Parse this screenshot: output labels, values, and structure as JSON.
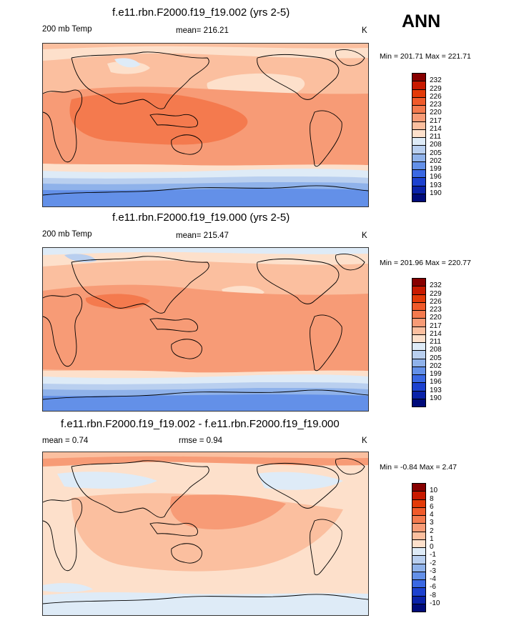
{
  "header": {
    "season": "ANN"
  },
  "panels": [
    {
      "title": "f.e11.rbn.F2000.f19_f19.002 (yrs 2-5)",
      "left_label": "200 mb Temp",
      "center_label": "mean= 216.21",
      "units": "K",
      "minmax": "Min = 201.71 Max = 221.71",
      "colorbar_labels": [
        "232",
        "229",
        "226",
        "223",
        "220",
        "217",
        "214",
        "211",
        "208",
        "205",
        "202",
        "199",
        "196",
        "193",
        "190"
      ],
      "colorbar_colors": [
        "#870000",
        "#c81a00",
        "#e33a08",
        "#f05a2a",
        "#f47a4e",
        "#f79b76",
        "#fbbf9f",
        "#fde0cb",
        "#deebf7",
        "#b9cfef",
        "#8fb2ea",
        "#6390e8",
        "#3a68e3",
        "#1c41cf",
        "#0a22a8",
        "#000b7a"
      ]
    },
    {
      "title": "f.e11.rbn.F2000.f19_f19.000 (yrs 2-5)",
      "left_label": "200 mb Temp",
      "center_label": "mean= 215.47",
      "units": "K",
      "minmax": "Min = 201.96 Max = 220.77",
      "colorbar_labels": [
        "232",
        "229",
        "226",
        "223",
        "220",
        "217",
        "214",
        "211",
        "208",
        "205",
        "202",
        "199",
        "196",
        "193",
        "190"
      ],
      "colorbar_colors": [
        "#870000",
        "#c81a00",
        "#e33a08",
        "#f05a2a",
        "#f47a4e",
        "#f79b76",
        "#fbbf9f",
        "#fde0cb",
        "#deebf7",
        "#b9cfef",
        "#8fb2ea",
        "#6390e8",
        "#3a68e3",
        "#1c41cf",
        "#0a22a8",
        "#000b7a"
      ]
    },
    {
      "title": "f.e11.rbn.F2000.f19_f19.002 - f.e11.rbn.F2000.f19_f19.000",
      "left_label": "mean =   0.74",
      "center_label": "rmse =   0.94",
      "units": "K",
      "minmax": "Min =  -0.84 Max =   2.47",
      "colorbar_labels": [
        "10",
        "8",
        "6",
        "4",
        "3",
        "2",
        "1",
        "0",
        "-1",
        "-2",
        "-3",
        "-4",
        "-6",
        "-8",
        "-10"
      ],
      "colorbar_colors": [
        "#870000",
        "#c81a00",
        "#e33a08",
        "#f05a2a",
        "#f47a4e",
        "#f79b76",
        "#fbbf9f",
        "#fde0cb",
        "#deebf7",
        "#b9cfef",
        "#8fb2ea",
        "#6390e8",
        "#3a68e3",
        "#1c41cf",
        "#0a22a8",
        "#000b7a"
      ]
    }
  ]
}
